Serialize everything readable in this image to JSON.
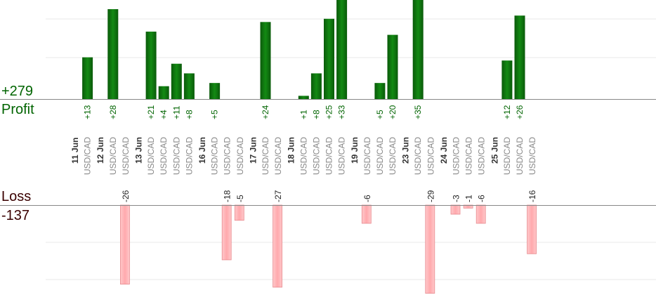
{
  "labels": {
    "profit_total": "+279",
    "profit": "Profit",
    "loss": "Loss",
    "loss_total": "-137"
  },
  "colors": {
    "profit_bar": "#0b6e0b",
    "profit_text": "#006400",
    "loss_bar": "#ffb6b9",
    "loss_stroke": "#e88a8f",
    "date_text": "#333333",
    "pair_text": "#888888",
    "grid": "#e8e8e8",
    "axis": "#888888"
  },
  "chart_data": {
    "type": "bar",
    "title": "",
    "profit_total": 279,
    "loss_total": -137,
    "groups": [
      {
        "date": "11 Jun",
        "trades": [
          {
            "pair": "USD/CAD",
            "value": 13
          }
        ]
      },
      {
        "date": "12 Jun",
        "trades": [
          {
            "pair": "USD/CAD",
            "value": 28
          },
          {
            "pair": "USD/CAD",
            "value": -26
          }
        ]
      },
      {
        "date": "13 Jun",
        "trades": [
          {
            "pair": "USD/CAD",
            "value": 21
          },
          {
            "pair": "USD/CAD",
            "value": 4
          },
          {
            "pair": "USD/CAD",
            "value": 11
          },
          {
            "pair": "USD/CAD",
            "value": 8
          }
        ]
      },
      {
        "date": "16 Jun",
        "trades": [
          {
            "pair": "USD/CAD",
            "value": 5
          },
          {
            "pair": "USD/CAD",
            "value": -18
          },
          {
            "pair": "USD/CAD",
            "value": -5
          }
        ]
      },
      {
        "date": "17 Jun",
        "trades": [
          {
            "pair": "USD/CAD",
            "value": 24
          },
          {
            "pair": "USD/CAD",
            "value": -27
          }
        ]
      },
      {
        "date": "18 Jun",
        "trades": [
          {
            "pair": "USD/CAD",
            "value": 1
          },
          {
            "pair": "USD/CAD",
            "value": 8
          },
          {
            "pair": "USD/CAD",
            "value": 25
          },
          {
            "pair": "USD/CAD",
            "value": 33
          }
        ]
      },
      {
        "date": "19 Jun",
        "trades": [
          {
            "pair": "USD/CAD",
            "value": -6
          },
          {
            "pair": "USD/CAD",
            "value": 5
          },
          {
            "pair": "USD/CAD",
            "value": 20
          }
        ]
      },
      {
        "date": "23 Jun",
        "trades": [
          {
            "pair": "USD/CAD",
            "value": 35
          },
          {
            "pair": "USD/CAD",
            "value": -29
          }
        ]
      },
      {
        "date": "24 Jun",
        "trades": [
          {
            "pair": "USD/CAD",
            "value": -3
          },
          {
            "pair": "USD/CAD",
            "value": -1
          },
          {
            "pair": "USD/CAD",
            "value": -6
          }
        ]
      },
      {
        "date": "25 Jun",
        "trades": [
          {
            "pair": "USD/CAD",
            "value": 12
          },
          {
            "pair": "USD/CAD",
            "value": 26
          },
          {
            "pair": "USD/CAD",
            "value": -16
          }
        ]
      }
    ]
  }
}
